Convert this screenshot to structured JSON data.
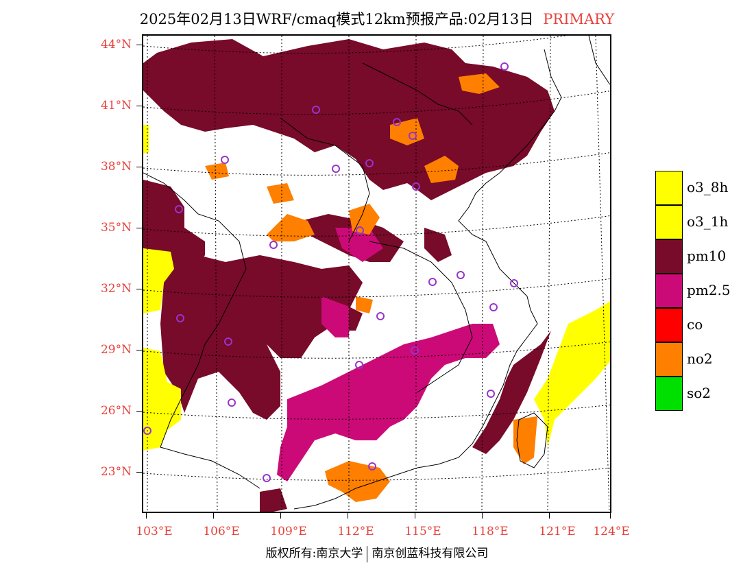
{
  "title": {
    "main": "2025年02月13日WRF/cmaq模式12km预报产品:02月13日",
    "tag": "PRIMARY"
  },
  "map": {
    "lat_labels": [
      "44°N",
      "41°N",
      "38°N",
      "35°N",
      "32°N",
      "29°N",
      "26°N",
      "23°N"
    ],
    "lon_labels": [
      "103°E",
      "106°E",
      "109°E",
      "112°E",
      "115°E",
      "118°E",
      "121°E",
      "124°E"
    ],
    "colors": {
      "background": "#ffffff",
      "pm10": "#780a2a",
      "pm25": "#cc0a77",
      "no2": "#ff7f00",
      "o3": "#ffff00",
      "co": "#ff0000",
      "so2": "#00e000",
      "marker": "#9933cc"
    }
  },
  "legend": [
    {
      "label": "o3_8h",
      "color": "#ffff00"
    },
    {
      "label": "o3_1h",
      "color": "#ffff00"
    },
    {
      "label": "pm10",
      "color": "#780a2a"
    },
    {
      "label": "pm2.5",
      "color": "#cc0a77"
    },
    {
      "label": "co",
      "color": "#ff0000"
    },
    {
      "label": "no2",
      "color": "#ff7f00"
    },
    {
      "label": "so2",
      "color": "#00e000"
    }
  ],
  "footer": {
    "left": "版权所有:南京大学",
    "right": "南京创蓝科技有限公司"
  }
}
